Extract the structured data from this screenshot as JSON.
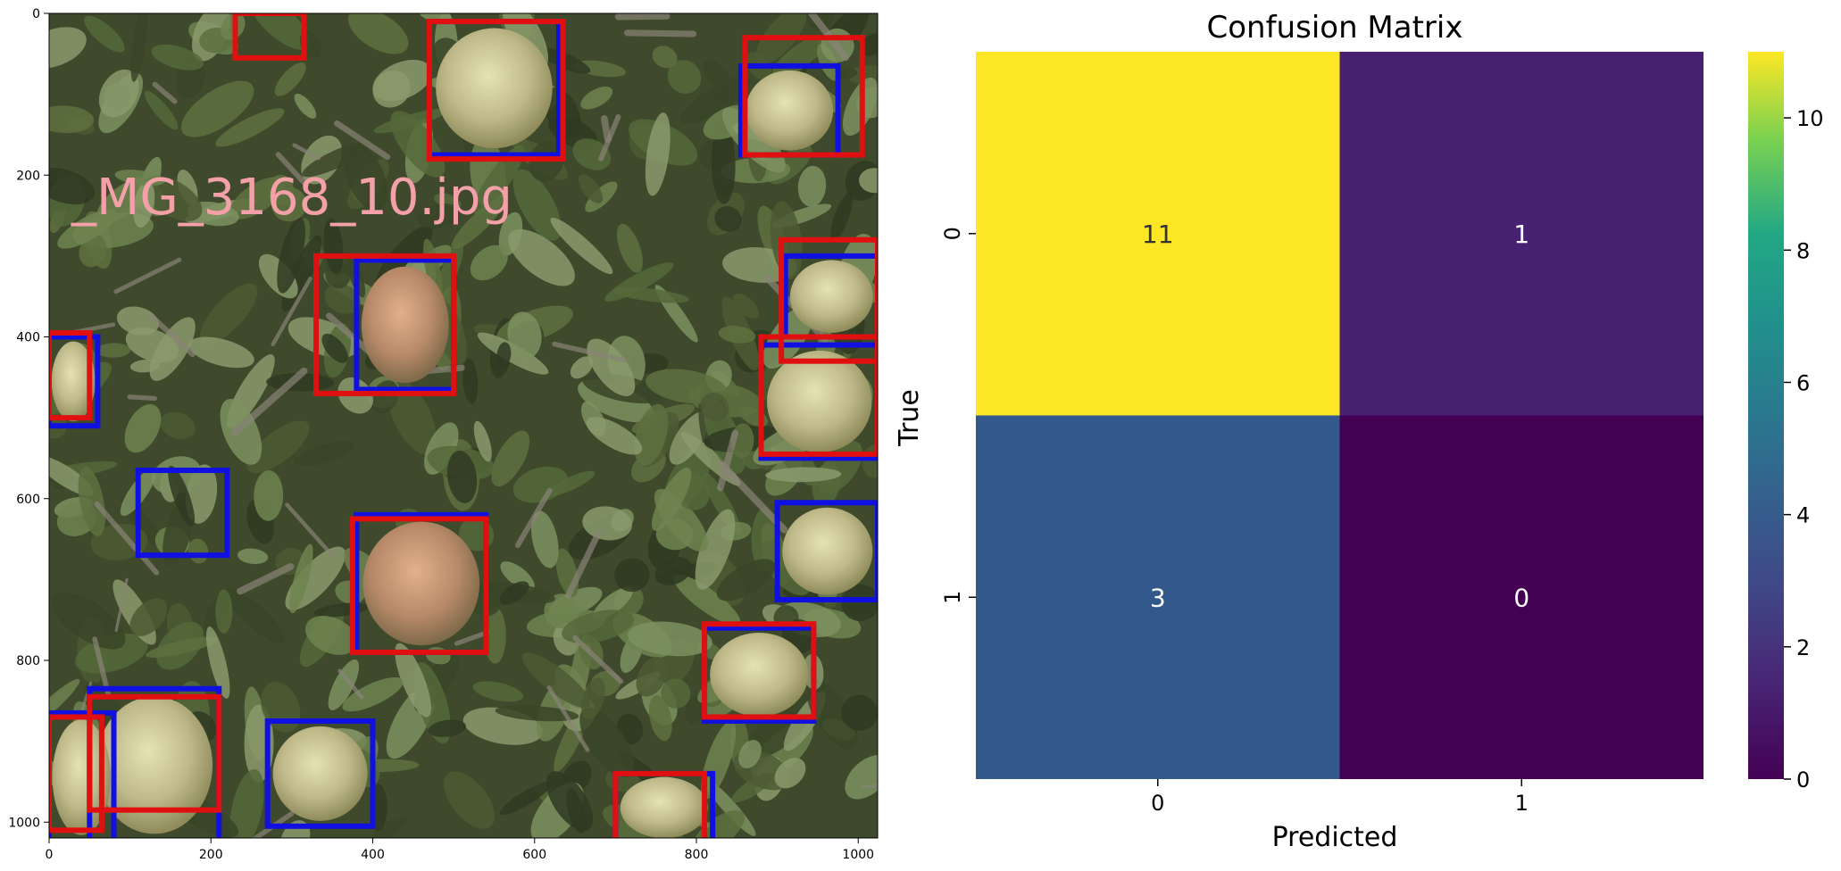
{
  "image_panel": {
    "overlay_text": "_MG_3168_10.jpg",
    "overlay_color": "#f4a0a8",
    "x_ticks": [
      0,
      200,
      400,
      600,
      800,
      1000
    ],
    "y_ticks": [
      0,
      200,
      400,
      600,
      800,
      1000
    ],
    "image_extent": [
      0,
      1024
    ],
    "box_colors": {
      "ground_truth": "#1010e0",
      "prediction": "#e01010"
    },
    "boxes_blue": [
      [
        470,
        10,
        630,
        175
      ],
      [
        855,
        65,
        975,
        175
      ],
      [
        910,
        300,
        1024,
        400
      ],
      [
        880,
        410,
        1024,
        550
      ],
      [
        0,
        400,
        60,
        510
      ],
      [
        110,
        565,
        220,
        670
      ],
      [
        380,
        305,
        500,
        465
      ],
      [
        380,
        620,
        540,
        790
      ],
      [
        900,
        605,
        1024,
        725
      ],
      [
        810,
        760,
        945,
        875
      ],
      [
        50,
        835,
        210,
        1024
      ],
      [
        0,
        865,
        80,
        1024
      ],
      [
        270,
        875,
        400,
        1005
      ],
      [
        700,
        940,
        820,
        1024
      ]
    ],
    "boxes_red": [
      [
        230,
        0,
        315,
        55
      ],
      [
        470,
        10,
        635,
        180
      ],
      [
        860,
        30,
        1005,
        175
      ],
      [
        905,
        280,
        1024,
        430
      ],
      [
        880,
        400,
        1024,
        545
      ],
      [
        330,
        300,
        500,
        470
      ],
      [
        375,
        625,
        540,
        790
      ],
      [
        0,
        395,
        50,
        500
      ],
      [
        810,
        755,
        945,
        870
      ],
      [
        50,
        845,
        210,
        985
      ],
      [
        0,
        870,
        65,
        1010
      ],
      [
        700,
        940,
        810,
        1024
      ]
    ]
  },
  "chart_data": {
    "type": "heatmap",
    "title": "Confusion Matrix",
    "xlabel": "Predicted",
    "ylabel": "True",
    "x_categories": [
      "0",
      "1"
    ],
    "y_categories": [
      "0",
      "1"
    ],
    "values": [
      [
        11,
        1
      ],
      [
        3,
        0
      ]
    ],
    "colormap": "viridis",
    "colorbar_range": [
      0,
      11
    ],
    "colorbar_ticks": [
      0,
      2,
      4,
      6,
      8,
      10
    ],
    "cell_colors": [
      [
        "#fde725",
        "#482173"
      ],
      [
        "#33598c",
        "#440154"
      ]
    ],
    "annotation_colors": [
      [
        "#333333",
        "#ffffff"
      ],
      [
        "#ffffff",
        "#ffffff"
      ]
    ]
  }
}
